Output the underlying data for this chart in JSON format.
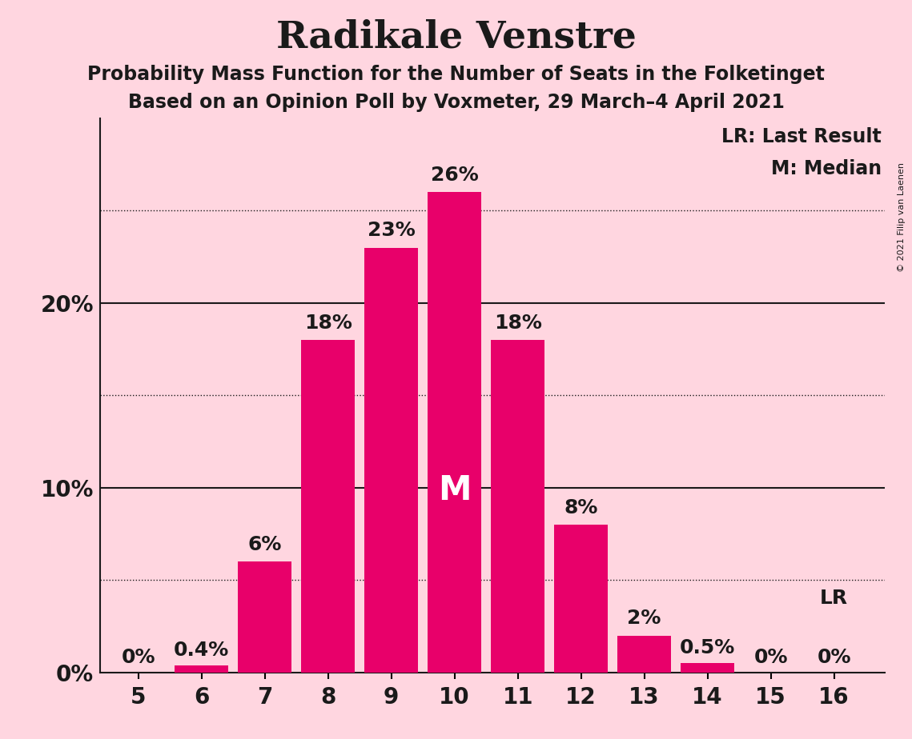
{
  "title": "Radikale Venstre",
  "subtitle1": "Probability Mass Function for the Number of Seats in the Folketinget",
  "subtitle2": "Based on an Opinion Poll by Voxmeter, 29 March–4 April 2021",
  "copyright": "© 2021 Filip van Laenen",
  "categories": [
    5,
    6,
    7,
    8,
    9,
    10,
    11,
    12,
    13,
    14,
    15,
    16
  ],
  "values": [
    0.0,
    0.4,
    6.0,
    18.0,
    23.0,
    26.0,
    18.0,
    8.0,
    2.0,
    0.5,
    0.0,
    0.0
  ],
  "bar_color": "#E8006A",
  "background_color": "#FFD6E0",
  "text_color": "#1A1A1A",
  "white": "#FFFFFF",
  "median_seat": 10,
  "lr_seat": 16,
  "legend_lr": "LR: Last Result",
  "legend_m": "M: Median",
  "solid_gridlines": [
    10.0,
    20.0
  ],
  "dotted_gridlines": [
    5.0,
    15.0,
    25.0
  ],
  "zero_line": 0.0,
  "ylim": [
    0,
    30
  ],
  "xlim_left": 4.4,
  "xlim_right": 16.8,
  "title_fontsize": 34,
  "subtitle_fontsize": 17,
  "axis_fontsize": 20,
  "bar_label_fontsize": 18,
  "legend_fontsize": 17,
  "copyright_fontsize": 8
}
